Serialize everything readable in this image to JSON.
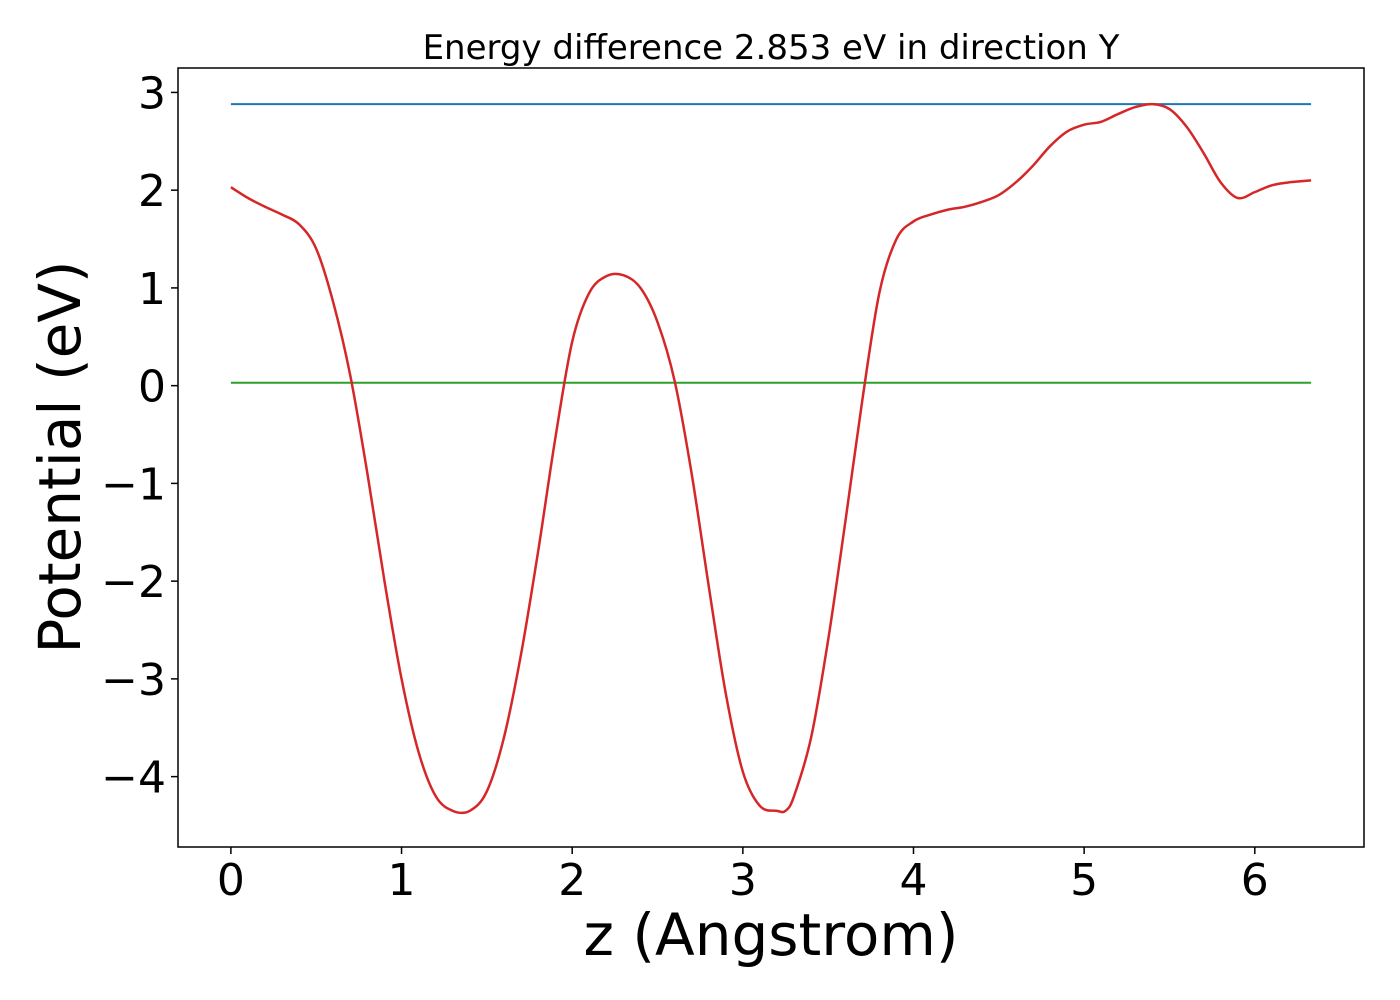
{
  "chart_data": {
    "type": "line",
    "title": "Energy difference 2.853 eV in direction Y",
    "xlabel": "z (Angstrom)",
    "ylabel": "Potential (eV)",
    "xlim": [
      -0.31,
      6.64
    ],
    "ylim": [
      -4.72,
      3.25
    ],
    "xticks": [
      0,
      1,
      2,
      3,
      4,
      5,
      6
    ],
    "xtick_labels": [
      "0",
      "1",
      "2",
      "3",
      "4",
      "5",
      "6"
    ],
    "yticks": [
      -4,
      -3,
      -2,
      -1,
      0,
      1,
      2,
      3
    ],
    "ytick_labels": [
      "−4",
      "−3",
      "−2",
      "−1",
      "0",
      "1",
      "2",
      "3"
    ],
    "grid": false,
    "legend": "none",
    "series": [
      {
        "color": "#d62728",
        "x": [
          0,
          0.1,
          0.2,
          0.3,
          0.4,
          0.5,
          0.6,
          0.7,
          0.8,
          0.9,
          1.0,
          1.1,
          1.2,
          1.3,
          1.4,
          1.5,
          1.6,
          1.7,
          1.8,
          1.9,
          2.0,
          2.1,
          2.2,
          2.3,
          2.4,
          2.5,
          2.6,
          2.7,
          2.8,
          2.9,
          3.0,
          3.1,
          3.2,
          3.25,
          3.3,
          3.4,
          3.5,
          3.6,
          3.7,
          3.8,
          3.9,
          4.0,
          4.1,
          4.2,
          4.3,
          4.4,
          4.5,
          4.6,
          4.7,
          4.8,
          4.9,
          5.0,
          5.1,
          5.2,
          5.3,
          5.4,
          5.5,
          5.6,
          5.7,
          5.8,
          5.9,
          6.0,
          6.1,
          6.2,
          6.33
        ],
        "y": [
          2.03,
          1.92,
          1.83,
          1.75,
          1.65,
          1.4,
          0.85,
          0.1,
          -0.9,
          -2.0,
          -3.0,
          -3.75,
          -4.2,
          -4.35,
          -4.35,
          -4.15,
          -3.6,
          -2.75,
          -1.7,
          -0.55,
          0.45,
          0.95,
          1.12,
          1.13,
          1.0,
          0.65,
          0.05,
          -0.9,
          -2.05,
          -3.15,
          -3.95,
          -4.3,
          -4.35,
          -4.35,
          -4.2,
          -3.6,
          -2.6,
          -1.4,
          -0.15,
          0.95,
          1.5,
          1.68,
          1.75,
          1.8,
          1.83,
          1.88,
          1.95,
          2.08,
          2.25,
          2.45,
          2.6,
          2.67,
          2.7,
          2.78,
          2.85,
          2.88,
          2.83,
          2.65,
          2.38,
          2.08,
          1.92,
          1.98,
          2.05,
          2.08,
          2.1
        ]
      },
      {
        "color": "#1f77b4",
        "x": [
          0,
          6.33
        ],
        "y": [
          2.88,
          2.88
        ]
      },
      {
        "color": "#2ca02c",
        "x": [
          0,
          6.33
        ],
        "y": [
          0.03,
          0.03
        ]
      }
    ]
  }
}
